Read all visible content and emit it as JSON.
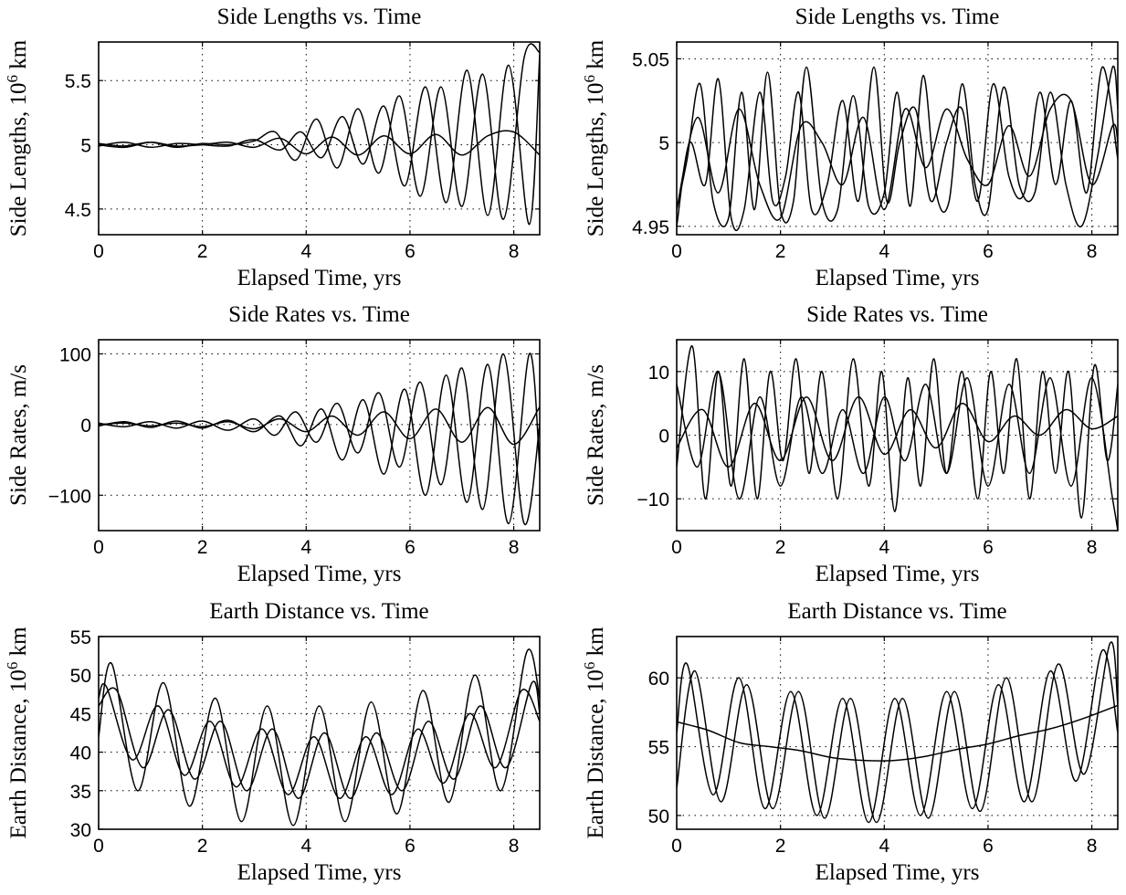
{
  "chart_data": [
    {
      "type": "line",
      "title": "Side Lengths vs. Time",
      "xlabel": "Elapsed Time, yrs",
      "ylabel_main": "Side Lengths, 10",
      "ylabel_sup": "6",
      "ylabel_unit": " km",
      "xlim": [
        0,
        8.5
      ],
      "ylim": [
        4.3,
        5.8
      ],
      "xticks": [
        0,
        2,
        4,
        6,
        8
      ],
      "xtick_labels": [
        "0",
        "2",
        "4",
        "6",
        "8"
      ],
      "yticks": [
        4.5,
        5,
        5.5
      ],
      "ytick_labels": [
        "4.5",
        "5",
        "5.5"
      ],
      "grid": true,
      "series": [
        {
          "x": [
            0,
            0.5,
            1,
            1.5,
            2,
            2.5,
            3,
            3.4,
            3.8,
            4.2,
            4.6,
            5,
            5.4,
            5.8,
            6.2,
            6.6,
            7,
            7.4,
            7.8,
            8.2,
            8.5
          ],
          "y": [
            5.01,
            4.99,
            5.02,
            4.98,
            5.01,
            5.0,
            5.03,
            5.1,
            4.88,
            5.2,
            4.82,
            5.28,
            4.78,
            5.38,
            4.6,
            5.45,
            4.52,
            5.55,
            4.42,
            5.68,
            5.72
          ]
        },
        {
          "x": [
            0,
            0.5,
            1,
            1.5,
            2,
            2.5,
            3,
            3.5,
            3.9,
            4.3,
            4.7,
            5.1,
            5.5,
            5.9,
            6.3,
            6.7,
            7.1,
            7.5,
            7.9,
            8.3,
            8.5
          ],
          "y": [
            4.99,
            5.02,
            4.98,
            5.01,
            5.0,
            4.99,
            5.04,
            4.96,
            5.1,
            4.9,
            5.22,
            4.85,
            5.3,
            4.68,
            5.45,
            4.55,
            5.58,
            4.45,
            5.62,
            4.38,
            5.7
          ]
        },
        {
          "x": [
            0,
            0.5,
            1,
            1.5,
            2,
            2.5,
            3,
            3.5,
            4,
            4.5,
            5,
            5.5,
            6,
            6.5,
            7,
            7.5,
            8,
            8.5
          ],
          "y": [
            5.0,
            4.98,
            5.02,
            4.99,
            5.0,
            5.02,
            4.98,
            5.05,
            4.93,
            5.06,
            4.92,
            5.07,
            4.93,
            5.08,
            4.92,
            5.07,
            5.1,
            4.92
          ]
        }
      ]
    },
    {
      "type": "line",
      "title": "Side Lengths vs. Time",
      "xlabel": "Elapsed Time, yrs",
      "ylabel_main": "Side Lengths, 10",
      "ylabel_sup": "6",
      "ylabel_unit": " km",
      "xlim": [
        0,
        8.5
      ],
      "ylim": [
        4.945,
        5.06
      ],
      "xticks": [
        0,
        2,
        4,
        6,
        8
      ],
      "xtick_labels": [
        "0",
        "2",
        "4",
        "6",
        "8"
      ],
      "yticks": [
        4.95,
        5,
        5.05
      ],
      "ytick_labels": [
        "4.95",
        "5",
        "5.05"
      ],
      "grid": true,
      "series": [
        {
          "x": [
            0,
            0.2,
            0.45,
            0.7,
            1,
            1.25,
            1.5,
            1.75,
            2,
            2.25,
            2.5,
            2.8,
            3.1,
            3.4,
            3.7,
            4,
            4.25,
            4.5,
            4.75,
            5,
            5.25,
            5.5,
            5.75,
            6,
            6.3,
            6.6,
            6.9,
            7.2,
            7.5,
            7.8,
            8.1,
            8.4,
            8.5
          ],
          "y": [
            4.96,
            4.99,
            5.035,
            4.965,
            4.955,
            5.03,
            4.96,
            5.042,
            4.96,
            4.965,
            5.045,
            4.965,
            4.96,
            5.028,
            4.962,
            4.97,
            5.03,
            4.962,
            5.04,
            4.97,
            4.965,
            5.035,
            4.975,
            4.96,
            5.033,
            4.975,
            4.97,
            5.03,
            4.975,
            4.95,
            4.99,
            5.045,
            5.02
          ]
        },
        {
          "x": [
            0,
            0.25,
            0.55,
            0.8,
            1.05,
            1.3,
            1.6,
            1.85,
            2.1,
            2.35,
            2.6,
            2.9,
            3.2,
            3.5,
            3.8,
            4.05,
            4.3,
            4.6,
            4.9,
            5.2,
            5.5,
            5.8,
            6.1,
            6.4,
            6.7,
            7,
            7.3,
            7.6,
            7.9,
            8.2,
            8.5
          ],
          "y": [
            4.95,
            5.0,
            4.975,
            5.038,
            4.955,
            4.96,
            5.03,
            4.965,
            4.98,
            5.03,
            4.96,
            4.975,
            5.025,
            4.965,
            5.045,
            4.965,
            5.0,
            5.02,
            4.965,
            5.0,
            5.02,
            4.965,
            5.035,
            4.98,
            4.97,
            5.03,
            4.975,
            5.025,
            4.97,
            5.045,
            4.99
          ]
        },
        {
          "x": [
            0,
            0.4,
            0.8,
            1.2,
            1.6,
            2,
            2.4,
            2.8,
            3.2,
            3.6,
            4,
            4.4,
            4.8,
            5.2,
            5.6,
            6,
            6.4,
            6.8,
            7.2,
            7.6,
            8,
            8.4,
            8.5
          ],
          "y": [
            4.96,
            5.015,
            4.97,
            5.02,
            4.975,
            4.955,
            5.01,
            5.0,
            4.975,
            5.015,
            4.96,
            5.02,
            4.985,
            5.02,
            4.99,
            4.975,
            5.01,
            4.98,
            5.02,
            5.025,
            4.975,
            5.01,
            5.0
          ]
        }
      ]
    },
    {
      "type": "line",
      "title": "Side Rates vs. Time",
      "xlabel": "Elapsed Time, yrs",
      "ylabel": "Side Rates, m/s",
      "xlim": [
        0,
        8.5
      ],
      "ylim": [
        -150,
        120
      ],
      "xticks": [
        0,
        2,
        4,
        6,
        8
      ],
      "xtick_labels": [
        "0",
        "2",
        "4",
        "6",
        "8"
      ],
      "yticks": [
        -100,
        0,
        100
      ],
      "ytick_labels": [
        "−100",
        "0",
        "100"
      ],
      "grid": true,
      "series": [
        {
          "x": [
            0,
            0.5,
            1,
            1.5,
            2,
            2.5,
            3,
            3.4,
            3.8,
            4.2,
            4.6,
            5,
            5.4,
            5.8,
            6.2,
            6.6,
            7,
            7.4,
            7.8,
            8.2,
            8.5
          ],
          "y": [
            2,
            -3,
            4,
            -5,
            5,
            -8,
            8,
            -15,
            18,
            -25,
            30,
            -40,
            45,
            -60,
            60,
            -85,
            80,
            -120,
            100,
            -140,
            0
          ]
        },
        {
          "x": [
            0,
            0.5,
            1,
            1.5,
            2,
            2.5,
            3,
            3.5,
            3.9,
            4.3,
            4.7,
            5.1,
            5.5,
            5.9,
            6.3,
            6.7,
            7.1,
            7.5,
            7.9,
            8.3,
            8.5
          ],
          "y": [
            -2,
            4,
            -4,
            5,
            -5,
            6,
            -10,
            12,
            -30,
            22,
            -50,
            35,
            -70,
            50,
            -100,
            70,
            -110,
            85,
            -140,
            100,
            -60
          ]
        },
        {
          "x": [
            0,
            0.5,
            1,
            1.5,
            2,
            2.5,
            3,
            3.5,
            4,
            4.5,
            5,
            5.5,
            6,
            6.5,
            7,
            7.5,
            8,
            8.5
          ],
          "y": [
            0,
            2,
            -2,
            2,
            -3,
            4,
            -6,
            8,
            -10,
            12,
            -15,
            18,
            -20,
            22,
            -25,
            24,
            -28,
            25
          ]
        }
      ]
    },
    {
      "type": "line",
      "title": "Side Rates vs. Time",
      "xlabel": "Elapsed Time, yrs",
      "ylabel": "Side Rates, m/s",
      "xlim": [
        0,
        8.5
      ],
      "ylim": [
        -15,
        15
      ],
      "xticks": [
        0,
        2,
        4,
        6,
        8
      ],
      "xtick_labels": [
        "0",
        "2",
        "4",
        "6",
        "8"
      ],
      "yticks": [
        -10,
        0,
        10
      ],
      "ytick_labels": [
        "−10",
        "0",
        "10"
      ],
      "grid": true,
      "series": [
        {
          "x": [
            0,
            0.3,
            0.55,
            0.8,
            1.05,
            1.3,
            1.55,
            1.8,
            2.05,
            2.3,
            2.55,
            2.8,
            3.1,
            3.4,
            3.7,
            3.95,
            4.2,
            4.45,
            4.7,
            4.95,
            5.2,
            5.5,
            5.8,
            6.05,
            6.3,
            6.55,
            6.8,
            7.05,
            7.3,
            7.55,
            7.8,
            8.05,
            8.3,
            8.5
          ],
          "y": [
            -5,
            14,
            -10,
            10,
            -8,
            12,
            -10,
            10,
            -4,
            12,
            -6,
            10,
            -10,
            12,
            -8,
            10,
            -12,
            9,
            -8,
            12,
            -6,
            10,
            -10,
            10,
            -6,
            12,
            -10,
            10,
            -6,
            10,
            -13,
            11,
            -4,
            8
          ]
        },
        {
          "x": [
            0,
            0.4,
            0.8,
            1.2,
            1.6,
            2,
            2.4,
            2.8,
            3.2,
            3.6,
            4,
            4.4,
            4.8,
            5.2,
            5.6,
            6,
            6.4,
            6.8,
            7.2,
            7.6,
            8,
            8.4,
            8.5
          ],
          "y": [
            8,
            -5,
            10,
            -10,
            6,
            -8,
            6,
            -6,
            4,
            -6,
            6,
            -4,
            8,
            -6,
            9,
            -8,
            8,
            -6,
            9,
            -8,
            9,
            -10,
            -15
          ]
        },
        {
          "x": [
            0,
            0.5,
            1,
            1.5,
            2,
            2.5,
            3,
            3.5,
            4,
            4.5,
            5,
            5.5,
            6,
            6.5,
            7,
            7.5,
            8,
            8.5
          ],
          "y": [
            -2,
            4,
            -5,
            5,
            -4,
            6,
            -4,
            6,
            -3,
            4,
            -2,
            5,
            -1,
            3,
            0,
            4,
            1,
            3
          ]
        }
      ]
    },
    {
      "type": "line",
      "title": "Earth Distance vs. Time",
      "xlabel": "Elapsed Time, yrs",
      "ylabel_main": "Earth Distance, 10",
      "ylabel_sup": "6",
      "ylabel_unit": " km",
      "xlim": [
        0,
        8.5
      ],
      "ylim": [
        30,
        55
      ],
      "xticks": [
        0,
        2,
        4,
        6,
        8
      ],
      "xtick_labels": [
        "0",
        "2",
        "4",
        "6",
        "8"
      ],
      "yticks": [
        30,
        35,
        40,
        45,
        50,
        55
      ],
      "ytick_labels": [
        "30",
        "35",
        "40",
        "45",
        "50",
        "55"
      ],
      "grid": true,
      "series": [
        {
          "x": [
            0,
            0.25,
            0.75,
            1.25,
            1.75,
            2.25,
            2.75,
            3.25,
            3.75,
            4.25,
            4.75,
            5.25,
            5.75,
            6.25,
            6.75,
            7.25,
            7.75,
            8.25,
            8.5
          ],
          "y": [
            42,
            51.5,
            35,
            49,
            33,
            47,
            31,
            46,
            30.5,
            46,
            31,
            46.5,
            32,
            48,
            33.5,
            50,
            35,
            53,
            47
          ]
        },
        {
          "x": [
            0,
            0.35,
            0.85,
            1.35,
            1.85,
            2.35,
            2.85,
            3.35,
            3.85,
            4.35,
            4.85,
            5.35,
            5.85,
            6.35,
            6.85,
            7.35,
            7.85,
            8.35,
            8.5
          ],
          "y": [
            46,
            48,
            38,
            45.5,
            36.5,
            44,
            35,
            43,
            34,
            42.5,
            34,
            42.5,
            35,
            44,
            36.5,
            46,
            38,
            49,
            45
          ]
        },
        {
          "x": [
            0,
            0.15,
            0.65,
            1.15,
            1.65,
            2.15,
            2.65,
            3.15,
            3.65,
            4.15,
            4.65,
            5.15,
            5.65,
            6.15,
            6.65,
            7.15,
            7.65,
            8.15,
            8.5
          ],
          "y": [
            47,
            48.5,
            39,
            46,
            37,
            44,
            35.5,
            43,
            34.5,
            42,
            34,
            42,
            34.5,
            43,
            36,
            45,
            38,
            48,
            44
          ]
        }
      ]
    },
    {
      "type": "line",
      "title": "Earth Distance vs. Time",
      "xlabel": "Elapsed Time, yrs",
      "ylabel_main": "Earth Distance, 10",
      "ylabel_sup": "6",
      "ylabel_unit": " km",
      "xlim": [
        0,
        8.5
      ],
      "ylim": [
        49,
        63
      ],
      "xticks": [
        0,
        2,
        4,
        6,
        8
      ],
      "xtick_labels": [
        "0",
        "2",
        "4",
        "6",
        "8"
      ],
      "yticks": [
        50,
        55,
        60
      ],
      "ytick_labels": [
        "50",
        "55",
        "60"
      ],
      "grid": true,
      "series": [
        {
          "x": [
            0,
            0.2,
            0.7,
            1.2,
            1.7,
            2.2,
            2.7,
            3.2,
            3.7,
            4.2,
            4.7,
            5.2,
            5.7,
            6.2,
            6.7,
            7.2,
            7.7,
            8.2,
            8.5
          ],
          "y": [
            56,
            61,
            51.5,
            60,
            50.5,
            59,
            50,
            58.5,
            49.5,
            58.5,
            50,
            59,
            50.5,
            59.5,
            51,
            60.5,
            52.5,
            62,
            56
          ]
        },
        {
          "x": [
            0,
            0.35,
            0.85,
            1.35,
            1.85,
            2.35,
            2.85,
            3.35,
            3.85,
            4.35,
            4.85,
            5.35,
            5.85,
            6.35,
            6.85,
            7.35,
            7.85,
            8.35,
            8.5
          ],
          "y": [
            52,
            60.5,
            51,
            59.5,
            50.5,
            59,
            49.8,
            58.5,
            49.5,
            58.5,
            49.8,
            59,
            50.3,
            60,
            51,
            61,
            53,
            62.5,
            58
          ]
        },
        {
          "x": [
            0,
            0.6,
            1.2,
            1.8,
            2.4,
            3,
            3.6,
            4.2,
            4.8,
            5.4,
            6,
            6.6,
            7.2,
            7.8,
            8.5
          ],
          "y": [
            56.8,
            56.2,
            55.3,
            55.0,
            54.7,
            54.2,
            54.0,
            54.0,
            54.3,
            54.8,
            55.2,
            55.8,
            56.3,
            57.0,
            58.0
          ]
        }
      ]
    }
  ]
}
